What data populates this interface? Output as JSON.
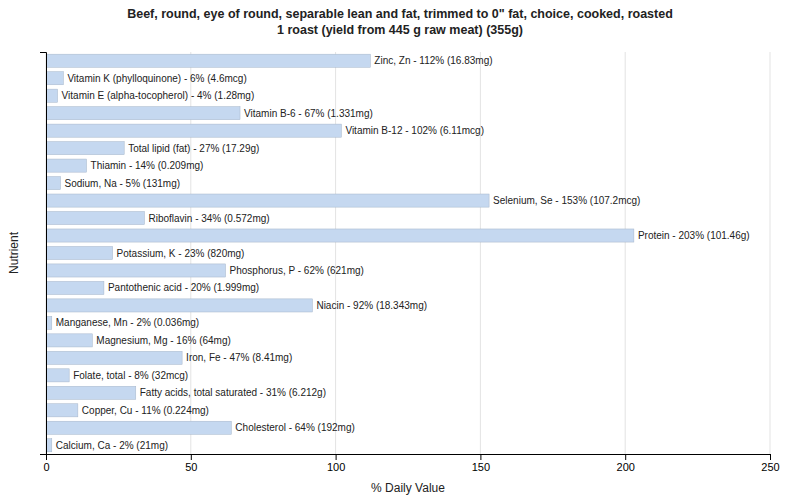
{
  "chart_data": {
    "type": "bar",
    "orientation": "horizontal",
    "title": "Beef, round, eye of round, separable lean and fat, trimmed to 0\" fat, choice, cooked, roasted\n1 roast (yield from 445 g raw meat) (355g)",
    "xlabel": "% Daily Value",
    "ylabel": "Nutrient",
    "categories": [
      "Calcium, Ca - 2% (21mg)",
      "Cholesterol - 64% (192mg)",
      "Copper, Cu - 11% (0.224mg)",
      "Fatty acids, total saturated - 31% (6.212g)",
      "Folate, total - 8% (32mcg)",
      "Iron, Fe - 47% (8.41mg)",
      "Magnesium, Mg - 16% (64mg)",
      "Manganese, Mn - 2% (0.036mg)",
      "Niacin - 92% (18.343mg)",
      "Pantothenic acid - 20% (1.999mg)",
      "Phosphorus, P - 62% (621mg)",
      "Potassium, K - 23% (820mg)",
      "Protein - 203% (101.46g)",
      "Riboflavin - 34% (0.572mg)",
      "Selenium, Se - 153% (107.2mcg)",
      "Sodium, Na - 5% (131mg)",
      "Thiamin - 14% (0.209mg)",
      "Total lipid (fat) - 27% (17.29g)",
      "Vitamin B-12 - 102% (6.11mcg)",
      "Vitamin B-6 - 67% (1.331mg)",
      "Vitamin E (alpha-tocopherol) - 4% (1.28mg)",
      "Vitamin K (phylloquinone) - 6% (4.6mcg)",
      "Zinc, Zn - 112% (16.83mg)"
    ],
    "values": [
      2,
      64,
      11,
      31,
      8,
      47,
      16,
      2,
      92,
      20,
      62,
      23,
      203,
      34,
      153,
      5,
      14,
      27,
      102,
      67,
      4,
      6,
      112
    ],
    "color": "#c5d8f0",
    "xlim": [
      0,
      250
    ],
    "xticks": [
      0,
      50,
      100,
      150,
      200,
      250
    ],
    "grid": true,
    "tick_labels": "x"
  }
}
